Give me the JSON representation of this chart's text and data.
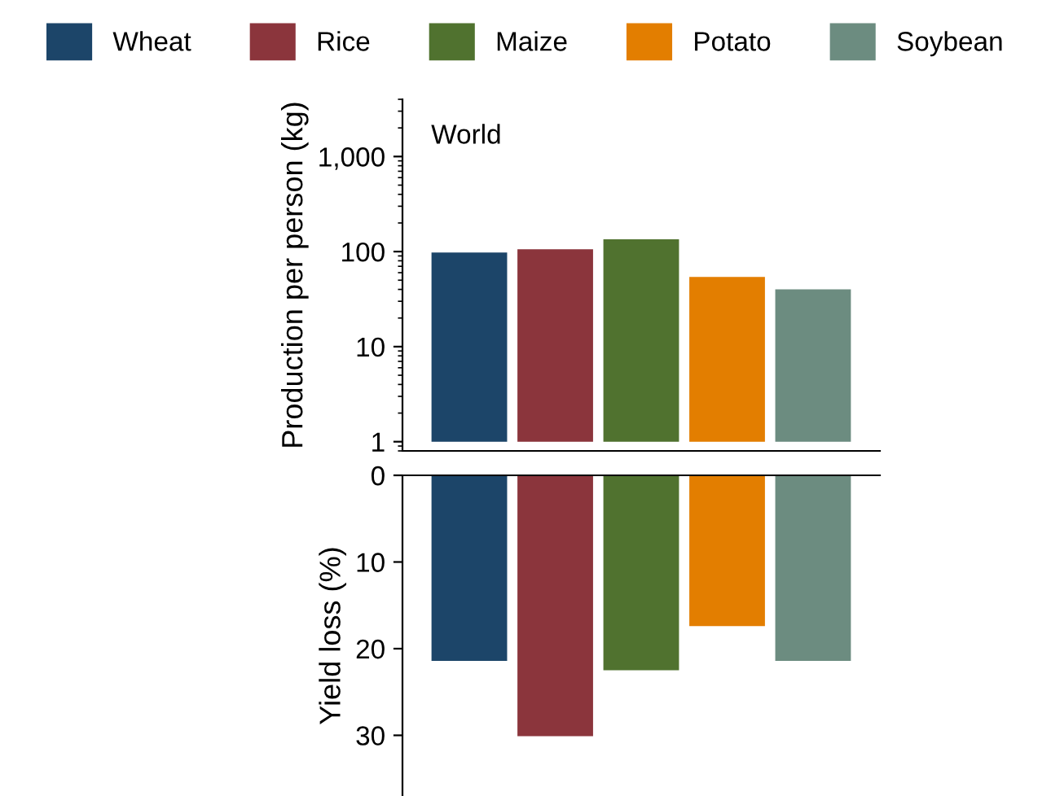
{
  "chart_data": [
    {
      "type": "bar",
      "ylabel": "Production per person (kg)",
      "annotations": [
        "World"
      ],
      "categories": [
        null
      ],
      "log": true,
      "ylim": [
        0.8,
        4000
      ],
      "yticks": [
        1,
        10,
        100,
        {
          "value": 1000,
          "label": "1,000"
        }
      ],
      "legend": "top",
      "tick_labels": "y",
      "series": [
        {
          "name": "Wheat",
          "color": "#1c4569",
          "values": [
            97
          ],
          "base": [
            1
          ]
        },
        {
          "name": "Rice",
          "color": "#8b353c",
          "values": [
            105
          ],
          "base": [
            1
          ]
        },
        {
          "name": "Maize",
          "color": "#50722f",
          "values": [
            134
          ],
          "base": [
            1
          ]
        },
        {
          "name": "Potato",
          "color": "#e37e00",
          "values": [
            53
          ],
          "base": [
            1
          ]
        },
        {
          "name": "Soybean",
          "color": "#6c8c80",
          "values": [
            39
          ],
          "base": [
            1
          ]
        }
      ]
    },
    {
      "type": "bar",
      "ylabel": "Yield loss (%)",
      "categories": [
        null
      ],
      "ylim": [
        37,
        0
      ],
      "yticks": [
        0,
        10,
        20,
        30
      ],
      "tick_labels": "y",
      "series": [
        {
          "color": "#1c4569",
          "values": [
            21.4
          ]
        },
        {
          "color": "#8b353c",
          "values": [
            30.1
          ]
        },
        {
          "color": "#50722f",
          "values": [
            22.5
          ]
        },
        {
          "color": "#e37e00",
          "values": [
            17.4
          ]
        },
        {
          "color": "#6c8c80",
          "values": [
            21.4
          ]
        }
      ]
    }
  ]
}
